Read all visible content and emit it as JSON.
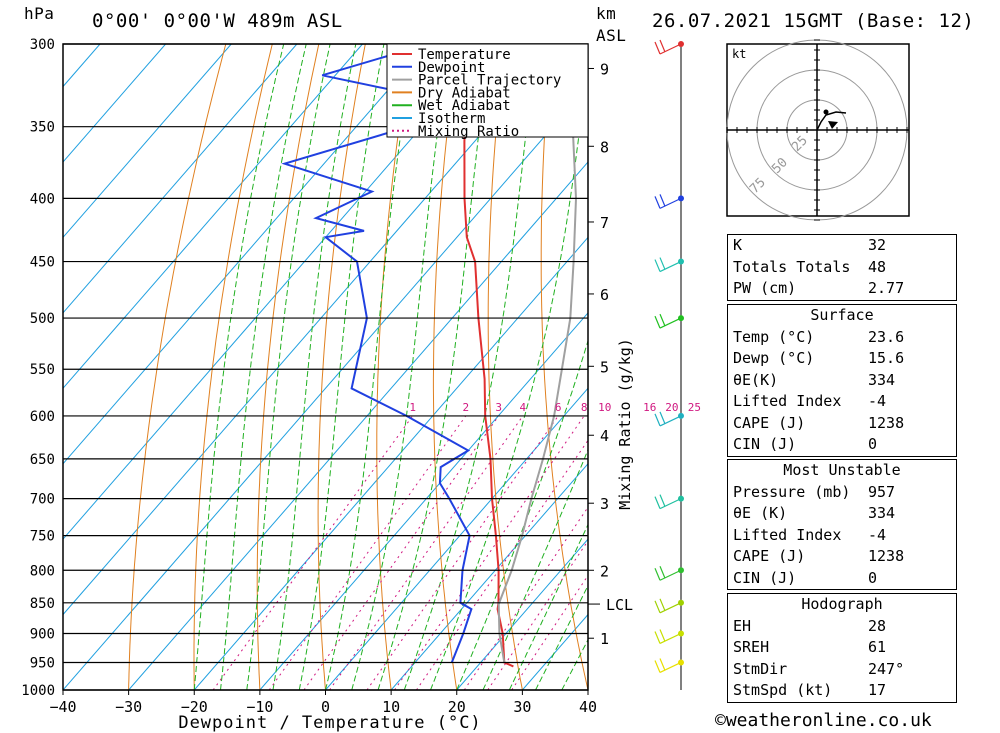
{
  "header": {
    "hpa_label": "hPa",
    "location": "0°00' 0°00'W 489m ASL",
    "km_label": "km",
    "asl_label": "ASL",
    "datetime": "26.07.2021 15GMT (Base: 12)"
  },
  "colors": {
    "temperature": "#e03030",
    "dewpoint": "#2040e0",
    "parcel": "#a0a0a0",
    "dry_adiabat": "#e08020",
    "wet_adiabat": "#20b020",
    "isotherm": "#20a0e0",
    "mixing_ratio": "#d01880"
  },
  "chart_data": {
    "type": "line",
    "chart_kind": "skew-T log-P",
    "xlabel": "Dewpoint / Temperature (°C)",
    "ylabel_left": "hPa",
    "ylabel_right": "Mixing Ratio (g/kg)",
    "x_ticks": [
      -40,
      -30,
      -20,
      -10,
      0,
      10,
      20,
      30,
      40
    ],
    "xlim": [
      -40,
      40
    ],
    "pressure_levels": [
      300,
      350,
      400,
      450,
      500,
      550,
      600,
      650,
      700,
      750,
      800,
      850,
      900,
      950,
      1000
    ],
    "km_ticks": [
      {
        "km": "1",
        "p": 908
      },
      {
        "km": "2",
        "p": 800
      },
      {
        "km": "3",
        "p": 706
      },
      {
        "km": "4",
        "p": 622
      },
      {
        "km": "5",
        "p": 547
      },
      {
        "km": "6",
        "p": 478
      },
      {
        "km": "7",
        "p": 418
      },
      {
        "km": "8",
        "p": 363
      },
      {
        "km": "9",
        "p": 314
      }
    ],
    "lcl_label": "LCL",
    "lcl_pressure": 852,
    "mixing_ratio_labels": [
      "1",
      "2",
      "3",
      "4",
      "6",
      "8",
      "10",
      "16",
      "20",
      "25"
    ],
    "mixing_ratio_values": [
      1,
      2,
      3,
      4,
      6,
      8,
      10,
      16,
      20,
      25
    ],
    "legend": [
      "Temperature",
      "Dewpoint",
      "Parcel Trajectory",
      "Dry Adiabat",
      "Wet Adiabat",
      "Isotherm",
      "Mixing Ratio"
    ],
    "series": [
      {
        "name": "Temperature",
        "points": [
          {
            "p": 957,
            "t": 25.5
          },
          {
            "p": 950,
            "t": 23.6
          },
          {
            "p": 900,
            "t": 19.5
          },
          {
            "p": 860,
            "t": 15.5
          },
          {
            "p": 850,
            "t": 14.8
          },
          {
            "p": 800,
            "t": 10.5
          },
          {
            "p": 750,
            "t": 5.5
          },
          {
            "p": 700,
            "t": 0.0
          },
          {
            "p": 650,
            "t": -5.5
          },
          {
            "p": 600,
            "t": -12.0
          },
          {
            "p": 560,
            "t": -17.0
          },
          {
            "p": 500,
            "t": -26.0
          },
          {
            "p": 450,
            "t": -34.0
          },
          {
            "p": 430,
            "t": -38.5
          },
          {
            "p": 400,
            "t": -44.0
          },
          {
            "p": 360,
            "t": -51.5
          },
          {
            "p": 330,
            "t": -57.5
          },
          {
            "p": 300,
            "t": -63.0
          }
        ]
      },
      {
        "name": "Dewpoint",
        "points": [
          {
            "p": 950,
            "t": 15.6
          },
          {
            "p": 900,
            "t": 13.5
          },
          {
            "p": 860,
            "t": 11.5
          },
          {
            "p": 850,
            "t": 9.0
          },
          {
            "p": 800,
            "t": 5.0
          },
          {
            "p": 750,
            "t": 1.5
          },
          {
            "p": 700,
            "t": -6.5
          },
          {
            "p": 680,
            "t": -10.0
          },
          {
            "p": 660,
            "t": -12.0
          },
          {
            "p": 640,
            "t": -10.0
          },
          {
            "p": 600,
            "t": -24.0
          },
          {
            "p": 570,
            "t": -36.0
          },
          {
            "p": 500,
            "t": -43.0
          },
          {
            "p": 450,
            "t": -52.0
          },
          {
            "p": 430,
            "t": -60.0
          },
          {
            "p": 425,
            "t": -55.0
          },
          {
            "p": 415,
            "t": -64.0
          },
          {
            "p": 395,
            "t": -59.0
          },
          {
            "p": 375,
            "t": -76.0
          },
          {
            "p": 350,
            "t": -62.0
          },
          {
            "p": 330,
            "t": -65.0
          },
          {
            "p": 318,
            "t": -82.0
          },
          {
            "p": 300,
            "t": -70.0
          }
        ]
      },
      {
        "name": "Parcel Trajectory",
        "points": [
          {
            "p": 950,
            "t": 23.6
          },
          {
            "p": 900,
            "t": 19.0
          },
          {
            "p": 852,
            "t": 15.0
          },
          {
            "p": 800,
            "t": 12.5
          },
          {
            "p": 750,
            "t": 9.5
          },
          {
            "p": 700,
            "t": 6.0
          },
          {
            "p": 650,
            "t": 2.5
          },
          {
            "p": 600,
            "t": -1.5
          },
          {
            "p": 550,
            "t": -6.5
          },
          {
            "p": 500,
            "t": -12.0
          },
          {
            "p": 450,
            "t": -19.0
          },
          {
            "p": 400,
            "t": -27.0
          },
          {
            "p": 350,
            "t": -37.0
          },
          {
            "p": 300,
            "t": -50.0
          }
        ]
      }
    ],
    "wind_barbs": [
      {
        "p": 950,
        "color": "#e8e000"
      },
      {
        "p": 900,
        "color": "#c8e000"
      },
      {
        "p": 850,
        "color": "#a0d000"
      },
      {
        "p": 800,
        "color": "#30c030"
      },
      {
        "p": 700,
        "color": "#20c0a0"
      },
      {
        "p": 600,
        "color": "#20b0c0"
      },
      {
        "p": 500,
        "color": "#20c020"
      },
      {
        "p": 450,
        "color": "#20c0b0"
      },
      {
        "p": 400,
        "color": "#2040e0"
      },
      {
        "p": 300,
        "color": "#e03030"
      }
    ]
  },
  "hodograph": {
    "unit": "kt",
    "ring_labels": [
      "25",
      "50",
      "75"
    ]
  },
  "indices": {
    "k_label": "K",
    "k": "32",
    "tt_label": "Totals Totals",
    "tt": "48",
    "pw_label": "PW (cm)",
    "pw": "2.77"
  },
  "surface": {
    "title": "Surface",
    "temp_label": "Temp (°C)",
    "temp": "23.6",
    "dewp_label": "Dewp (°C)",
    "dewp": "15.6",
    "thetae_label": "θE(K)",
    "thetae": "334",
    "li_label": "Lifted Index",
    "li": "-4",
    "cape_label": "CAPE (J)",
    "cape": "1238",
    "cin_label": "CIN (J)",
    "cin": "0"
  },
  "most_unstable": {
    "title": "Most Unstable",
    "pressure_label": "Pressure (mb)",
    "pressure": "957",
    "thetae_label": "θE (K)",
    "thetae": "334",
    "li_label": "Lifted Index",
    "li": "-4",
    "cape_label": "CAPE (J)",
    "cape": "1238",
    "cin_label": "CIN (J)",
    "cin": "0"
  },
  "hodograph_stats": {
    "title": "Hodograph",
    "eh_label": "EH",
    "eh": "28",
    "sreh_label": "SREH",
    "sreh": "61",
    "stmdir_label": "StmDir",
    "stmdir": "247°",
    "stmspd_label": "StmSpd (kt)",
    "stmspd": "17"
  },
  "footer": {
    "copyright": "©weatheronline.co.uk"
  }
}
